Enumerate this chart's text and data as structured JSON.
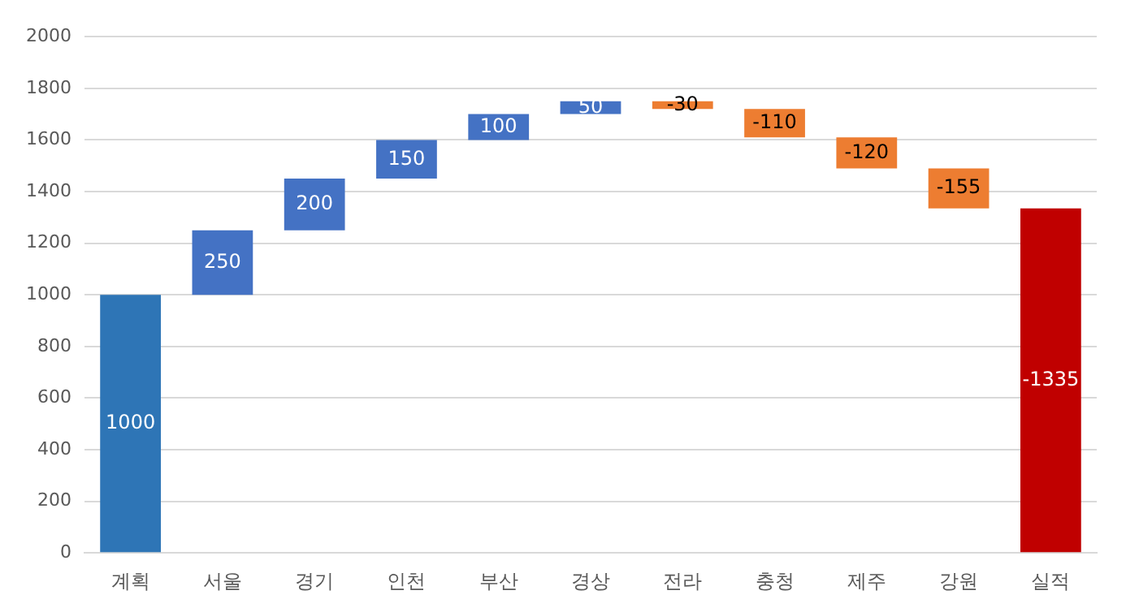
{
  "chart_data": {
    "type": "bar",
    "categories": [
      "계획",
      "서울",
      "경기",
      "인천",
      "부산",
      "경상",
      "전라",
      "충청",
      "제주",
      "강원",
      "실적"
    ],
    "base": [
      0,
      1000,
      1250,
      1450,
      1600,
      1700,
      1750,
      1720,
      1610,
      1490,
      1335
    ],
    "values": [
      1000,
      250,
      200,
      150,
      100,
      50,
      -30,
      -110,
      -120,
      -155,
      -1335
    ],
    "colors": [
      "#2e75b6",
      "#4472c4",
      "#4472c4",
      "#4472c4",
      "#4472c4",
      "#4472c4",
      "#ed7d31",
      "#ed7d31",
      "#ed7d31",
      "#ed7d31",
      "#c00000"
    ],
    "ylim": [
      0,
      2000
    ],
    "yticks": [
      0,
      200,
      400,
      600,
      800,
      1000,
      1200,
      1400,
      1600,
      1800,
      2000
    ],
    "grid": "y",
    "legend": false,
    "data_labels": true
  }
}
